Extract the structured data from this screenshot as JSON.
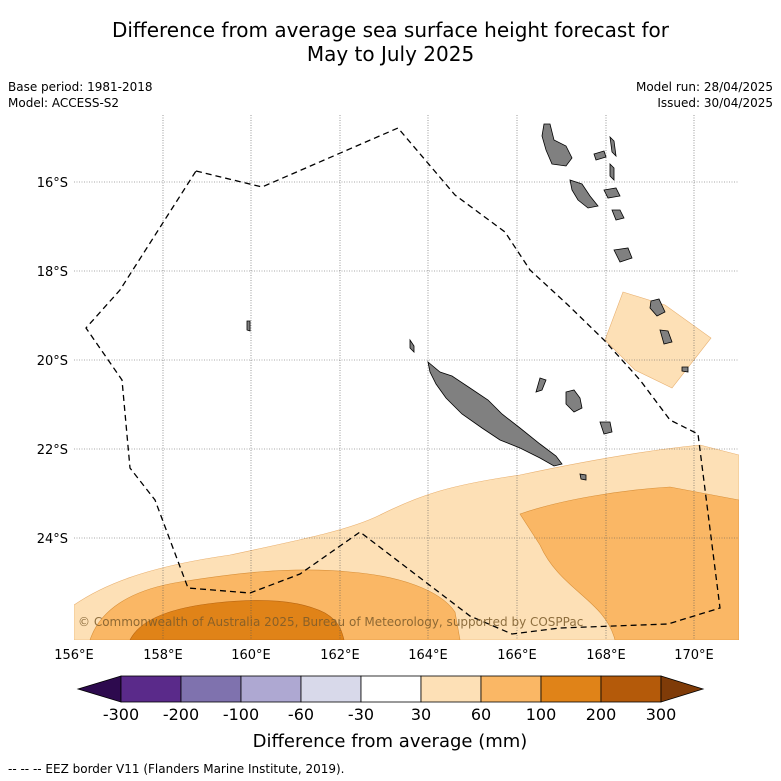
{
  "title_line1": "Difference from average sea surface height forecast for",
  "title_line2": "May to July 2025",
  "base_period": "Base period: 1981-2018",
  "model": "Model: ACCESS-S2",
  "model_run": "Model run: 28/04/2025",
  "issued": "Issued: 30/04/2025",
  "map": {
    "lat_labels": [
      "16°S",
      "18°S",
      "20°S",
      "22°S",
      "24°S"
    ],
    "lon_labels": [
      "156°E",
      "158°E",
      "160°E",
      "162°E",
      "164°E",
      "166°E",
      "168°E",
      "170°E"
    ],
    "copyright": "© Commonwealth of Australia 2025, Bureau of Meteorology, supported by COSPPac"
  },
  "legend": {
    "title": "Difference from average (mm)",
    "tick_labels": [
      "-300",
      "-200",
      "-100",
      "-60",
      "-30",
      "30",
      "60",
      "100",
      "200",
      "300"
    ],
    "colors": [
      "#2d0a4e",
      "#5a2a8a",
      "#7f72ae",
      "#aea8d2",
      "#d8d9ea",
      "#ffffff",
      "#fde0b6",
      "#fab765",
      "#e08318",
      "#b45a0a",
      "#7f3b08"
    ]
  },
  "footer": "-- -- -- EEZ border V11 (Flanders Marine Institute, 2019)."
}
